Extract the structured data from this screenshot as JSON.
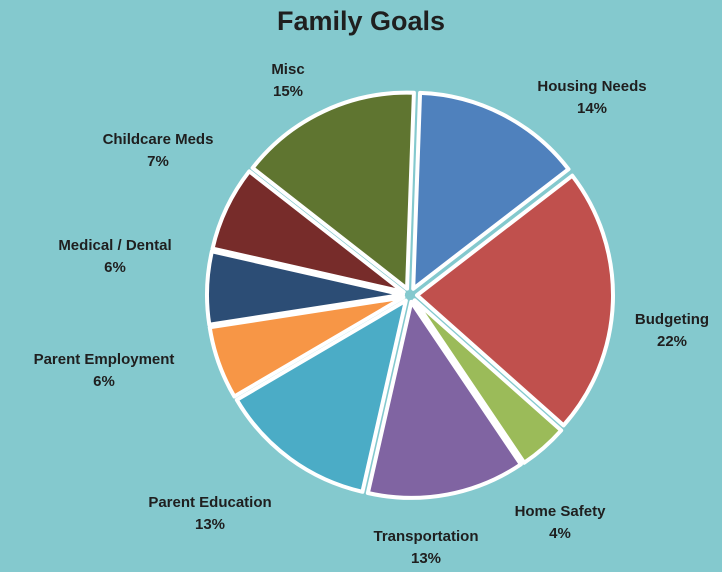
{
  "colors": {
    "background": "#84C9CE",
    "slice_border": "#ffffff"
  },
  "chart_data": {
    "type": "pie",
    "title": "Family Goals",
    "slices": [
      {
        "label": "Housing Needs",
        "value": 14,
        "percent_label": "14%",
        "color": "#4F81BD"
      },
      {
        "label": "Budgeting",
        "value": 22,
        "percent_label": "22%",
        "color": "#C0504D"
      },
      {
        "label": "Home Safety",
        "value": 4,
        "percent_label": "4%",
        "color": "#9BBB59"
      },
      {
        "label": "Transportation",
        "value": 13,
        "percent_label": "13%",
        "color": "#8064A2"
      },
      {
        "label": "Parent Education",
        "value": 13,
        "percent_label": "13%",
        "color": "#4BACC6"
      },
      {
        "label": "Parent Employment",
        "value": 6,
        "percent_label": "6%",
        "color": "#F79646"
      },
      {
        "label": "Medical / Dental",
        "value": 6,
        "percent_label": "6%",
        "color": "#2C4D75"
      },
      {
        "label": "Childcare Meds",
        "value": 7,
        "percent_label": "7%",
        "color": "#772C2A"
      },
      {
        "label": "Misc",
        "value": 15,
        "percent_label": "15%",
        "color": "#5F7530"
      }
    ]
  }
}
